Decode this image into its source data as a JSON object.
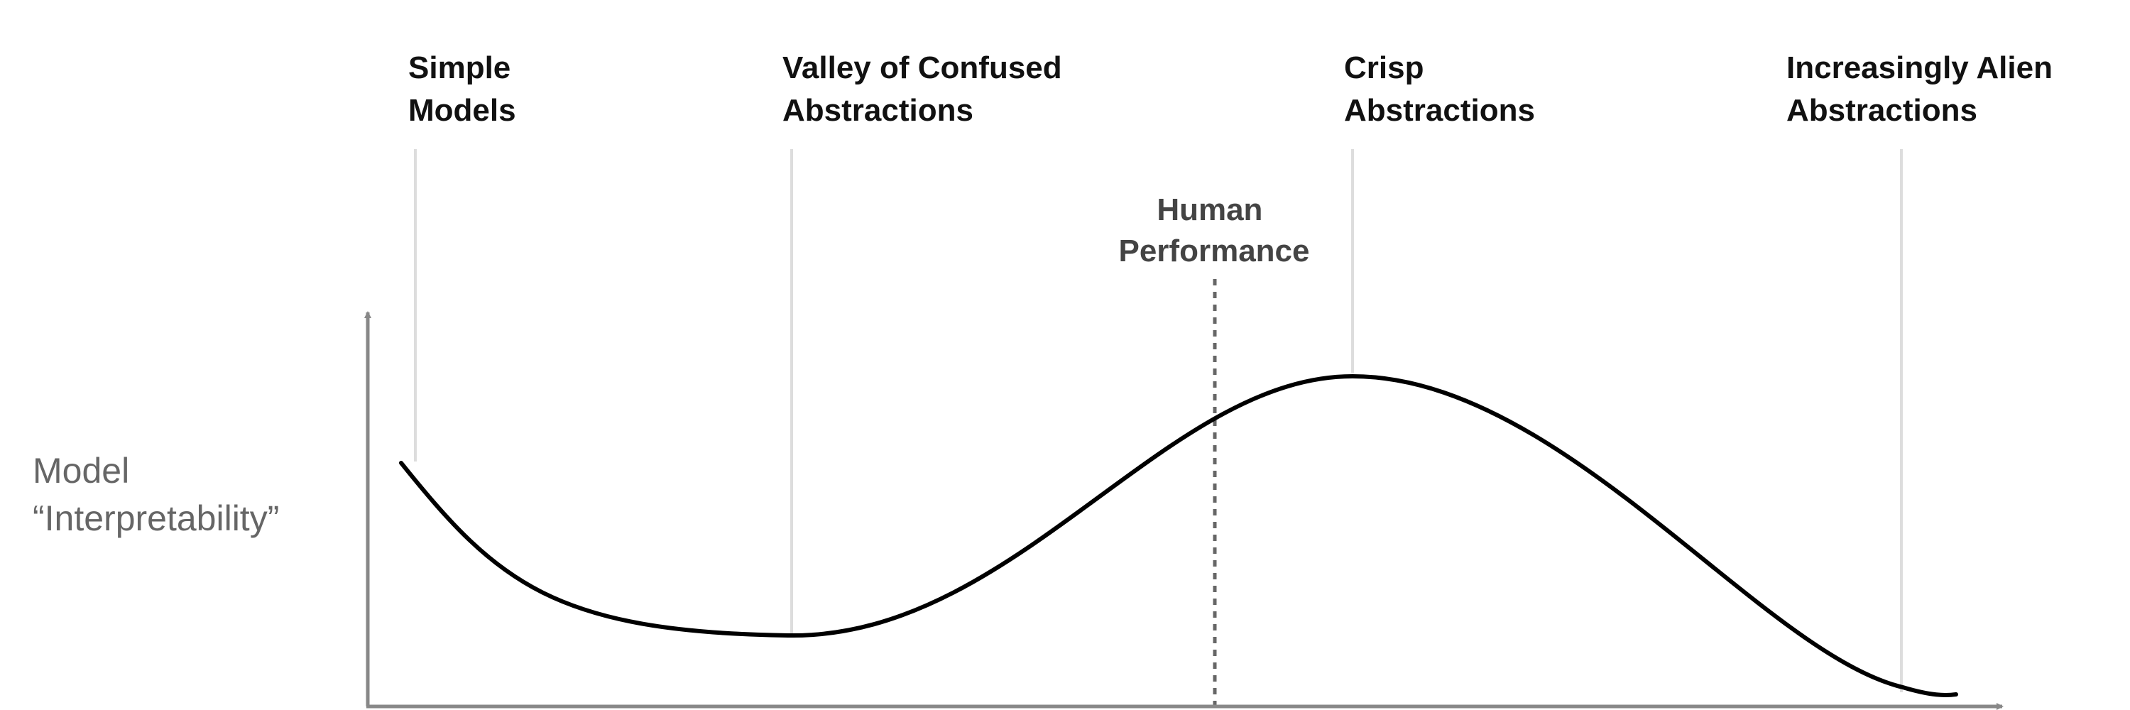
{
  "regions": [
    {
      "id": "simple-models",
      "lines": [
        "Simple",
        "Models"
      ]
    },
    {
      "id": "valley-of-confused-abstractions",
      "lines": [
        "Valley of Confused",
        "Abstractions"
      ]
    },
    {
      "id": "crisp-abstractions",
      "lines": [
        "Crisp",
        "Abstractions"
      ]
    },
    {
      "id": "increasingly-alien-abstractions",
      "lines": [
        "Increasingly Alien",
        "Abstractions"
      ]
    }
  ],
  "human_performance": {
    "lines": [
      "Human",
      "Performance"
    ]
  },
  "y_axis": {
    "label_lines": [
      "Model",
      "“Interpretability”"
    ]
  },
  "colors": {
    "curve": "#000000",
    "axis": "#888888",
    "guide_line": "#dddddd",
    "marker_line": "#666666",
    "region_text": "#111111",
    "marker_text": "#444444",
    "axis_text": "#666666"
  }
}
